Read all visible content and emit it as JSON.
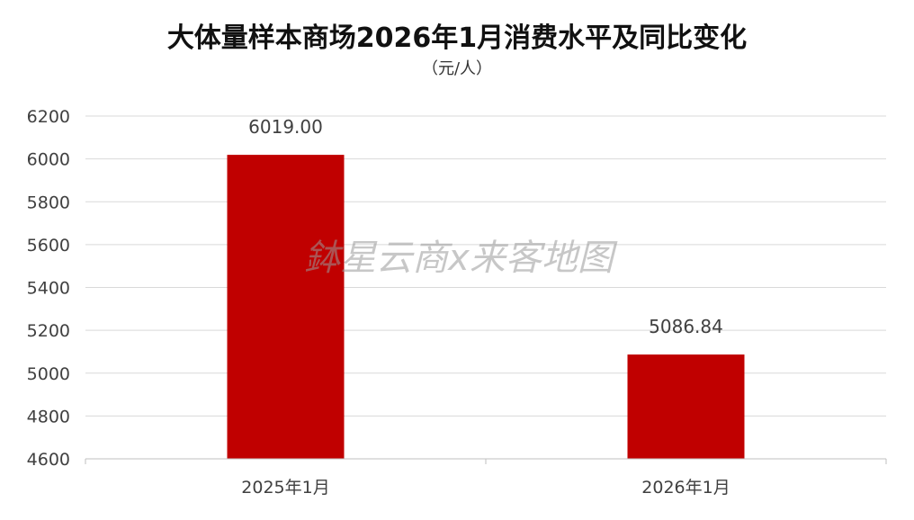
{
  "chart_data": {
    "type": "bar",
    "title": "大体量样本商场2026年1月消费水平及同比变化",
    "subtitle": "（元/人）",
    "categories": [
      "2025年1月",
      "2026年1月"
    ],
    "values": [
      6019.0,
      5086.84
    ],
    "data_labels": [
      "6019.00",
      "5086.84"
    ],
    "ylim": [
      4600,
      6200
    ],
    "yticks": [
      4600,
      4800,
      5000,
      5200,
      5400,
      5600,
      5800,
      6000,
      6200
    ],
    "grid": true,
    "legend": "none",
    "bar_color": "#c00000",
    "watermark": "鉢星云商x来客地图"
  }
}
